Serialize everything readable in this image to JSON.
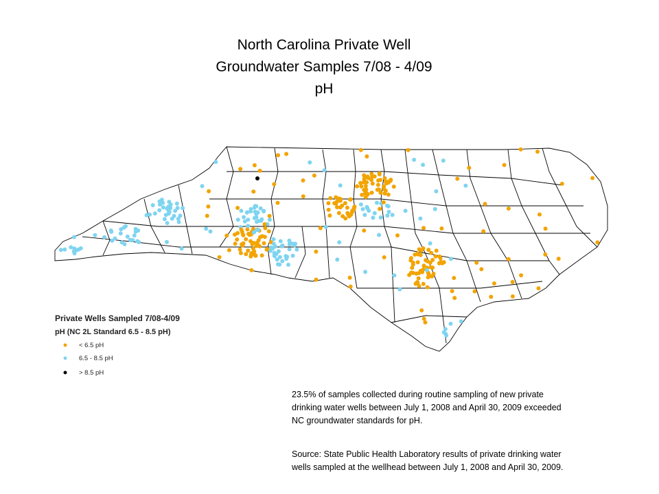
{
  "header": {
    "title_lines": [
      "North Carolina Private Well",
      "Groundwater Samples 7/08 - 4/09",
      "pH"
    ]
  },
  "legend": {
    "title": "Private Wells Sampled 7/08-4/09",
    "subtitle": "pH (NC 2L Standard 6.5 - 8.5 pH)",
    "items": [
      "< 6.5 pH",
      "6.5 - 8.5 pH",
      "> 8.5 pH"
    ]
  },
  "notes": [
    {
      "lines": [
        "23.5% of samples collected during routine sampling of new private",
        "drinking water wells between July 1, 2008 and April 30, 2009 exceeded",
        "NC groundwater  standards for pH."
      ]
    },
    {
      "lines": [
        "Source: State Public Health Laboratory results of private drinking water",
        "wells sampled at the wellhead between July 1, 2008 and April 30, 2009."
      ]
    }
  ]
}
